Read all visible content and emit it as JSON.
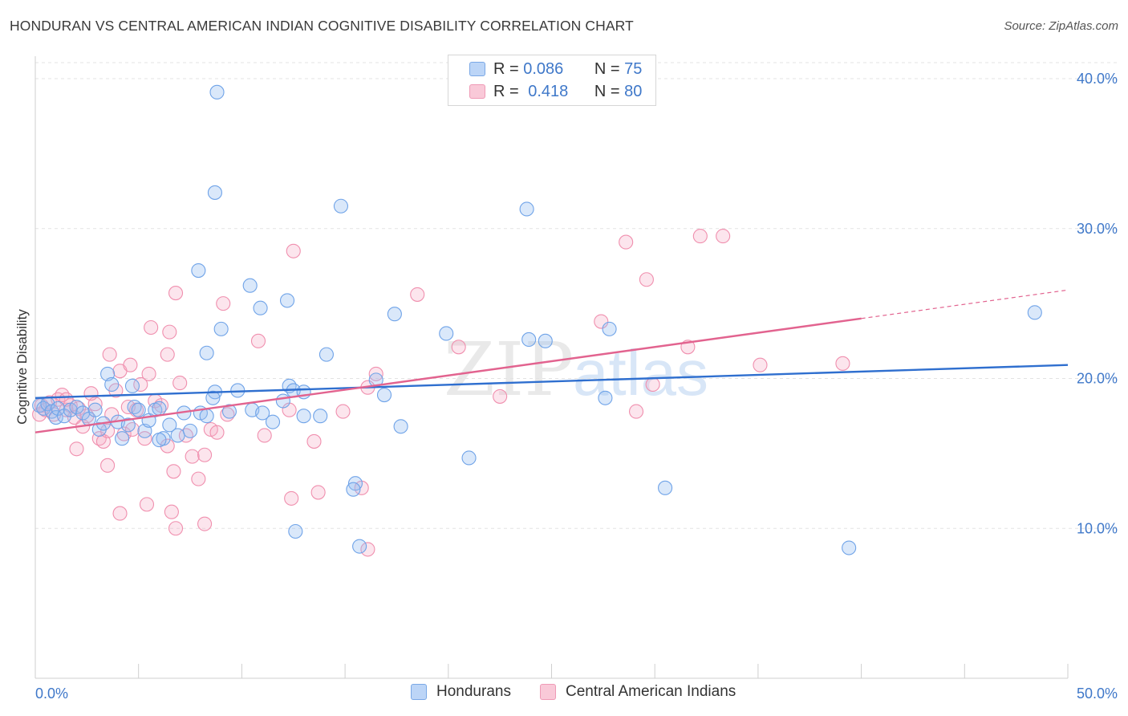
{
  "title": "HONDURAN VS CENTRAL AMERICAN INDIAN COGNITIVE DISABILITY CORRELATION CHART",
  "source": "Source: ZipAtlas.com",
  "legend": {
    "rows": [
      {
        "r_label": "R =",
        "r_value": "0.086",
        "n_label": "N =",
        "n_value": "75"
      },
      {
        "r_label": "R =",
        "r_value": "0.418",
        "n_label": "N =",
        "n_value": "80"
      }
    ]
  },
  "bottom_legend": [
    "Hondurans",
    "Central American Indians"
  ],
  "watermark": {
    "zip": "ZIP",
    "atlas": "atlas"
  },
  "chart_data": {
    "type": "scatter",
    "ylabel": "Cognitive Disability",
    "xlim": [
      0,
      50
    ],
    "ylim": [
      0,
      41.5
    ],
    "x_tick_labels": [
      "0.0%",
      "50.0%"
    ],
    "y_ticks": [
      10,
      20,
      30,
      40
    ],
    "y_tick_labels": [
      "10.0%",
      "20.0%",
      "30.0%",
      "40.0%"
    ],
    "grid": true,
    "colors": {
      "Hondurans": "#6fa3e8",
      "Central American Indians": "#f08fae",
      "trend_blue": "#2f6fcf",
      "trend_pink": "#e2638f"
    },
    "series": [
      {
        "name": "Hondurans",
        "points": [
          [
            0.2,
            18.2
          ],
          [
            0.4,
            18.0
          ],
          [
            0.6,
            18.3
          ],
          [
            0.8,
            17.8
          ],
          [
            1.0,
            17.4
          ],
          [
            1.1,
            18.0
          ],
          [
            1.4,
            17.5
          ],
          [
            1.7,
            17.9
          ],
          [
            2.0,
            18.1
          ],
          [
            2.3,
            17.7
          ],
          [
            2.6,
            17.3
          ],
          [
            2.9,
            17.9
          ],
          [
            3.1,
            16.6
          ],
          [
            3.3,
            17.0
          ],
          [
            3.5,
            20.3
          ],
          [
            3.7,
            19.6
          ],
          [
            4.0,
            17.1
          ],
          [
            4.2,
            16.0
          ],
          [
            4.5,
            16.9
          ],
          [
            4.8,
            18.1
          ],
          [
            5.0,
            17.9
          ],
          [
            5.3,
            16.5
          ],
          [
            5.5,
            17.2
          ],
          [
            5.8,
            17.9
          ],
          [
            6.0,
            18.0
          ],
          [
            6.2,
            16.0
          ],
          [
            6.5,
            16.9
          ],
          [
            6.9,
            16.2
          ],
          [
            7.2,
            17.7
          ],
          [
            7.5,
            16.5
          ],
          [
            8.0,
            17.7
          ],
          [
            8.3,
            17.5
          ],
          [
            8.7,
            19.1
          ],
          [
            9.4,
            17.8
          ],
          [
            9.8,
            19.2
          ],
          [
            10.5,
            17.9
          ],
          [
            11.0,
            17.7
          ],
          [
            11.5,
            17.1
          ],
          [
            12.0,
            18.5
          ],
          [
            12.3,
            19.5
          ],
          [
            12.5,
            19.2
          ],
          [
            13.0,
            17.5
          ],
          [
            8.7,
            32.4
          ],
          [
            14.8,
            31.5
          ],
          [
            9.0,
            23.3
          ],
          [
            12.2,
            25.2
          ],
          [
            10.4,
            26.2
          ],
          [
            10.9,
            24.7
          ],
          [
            14.1,
            21.6
          ],
          [
            17.4,
            24.3
          ],
          [
            19.9,
            23.0
          ],
          [
            23.9,
            22.6
          ],
          [
            24.7,
            22.5
          ],
          [
            8.6,
            18.7
          ],
          [
            8.3,
            21.7
          ],
          [
            7.9,
            27.2
          ],
          [
            4.7,
            19.5
          ],
          [
            23.8,
            31.3
          ],
          [
            8.8,
            39.1
          ],
          [
            27.8,
            23.3
          ],
          [
            27.6,
            18.7
          ],
          [
            30.5,
            12.7
          ],
          [
            21.0,
            14.7
          ],
          [
            15.5,
            13.0
          ],
          [
            15.4,
            12.6
          ],
          [
            15.7,
            8.8
          ],
          [
            17.7,
            16.8
          ],
          [
            16.9,
            18.9
          ],
          [
            16.5,
            19.9
          ],
          [
            12.6,
            9.8
          ],
          [
            13.8,
            17.5
          ],
          [
            13.0,
            19.1
          ],
          [
            39.4,
            8.7
          ],
          [
            48.4,
            24.4
          ],
          [
            6.0,
            15.9
          ]
        ]
      },
      {
        "name": "Central American Indians",
        "points": [
          [
            0.2,
            17.6
          ],
          [
            0.3,
            18.2
          ],
          [
            0.5,
            17.9
          ],
          [
            0.7,
            18.4
          ],
          [
            0.9,
            17.6
          ],
          [
            1.1,
            18.6
          ],
          [
            1.3,
            18.9
          ],
          [
            1.5,
            17.9
          ],
          [
            1.7,
            18.2
          ],
          [
            1.9,
            17.4
          ],
          [
            2.1,
            18.0
          ],
          [
            2.3,
            16.8
          ],
          [
            2.5,
            17.5
          ],
          [
            2.7,
            19.0
          ],
          [
            2.9,
            18.3
          ],
          [
            3.1,
            16.0
          ],
          [
            3.3,
            15.8
          ],
          [
            3.5,
            16.5
          ],
          [
            3.7,
            17.6
          ],
          [
            3.9,
            19.2
          ],
          [
            4.1,
            20.5
          ],
          [
            4.3,
            16.3
          ],
          [
            4.5,
            18.1
          ],
          [
            4.7,
            16.6
          ],
          [
            4.9,
            17.9
          ],
          [
            5.1,
            19.6
          ],
          [
            5.3,
            16.0
          ],
          [
            5.5,
            20.3
          ],
          [
            5.8,
            18.5
          ],
          [
            6.1,
            18.2
          ],
          [
            6.4,
            15.5
          ],
          [
            6.7,
            13.8
          ],
          [
            7.0,
            19.7
          ],
          [
            7.3,
            16.2
          ],
          [
            7.6,
            14.8
          ],
          [
            7.9,
            13.3
          ],
          [
            8.2,
            10.3
          ],
          [
            8.5,
            16.6
          ],
          [
            8.8,
            16.4
          ],
          [
            10.8,
            22.5
          ],
          [
            11.1,
            16.2
          ],
          [
            12.3,
            17.9
          ],
          [
            12.5,
            28.5
          ],
          [
            13.5,
            15.8
          ],
          [
            14.9,
            17.8
          ],
          [
            16.1,
            19.4
          ],
          [
            16.5,
            20.3
          ],
          [
            18.5,
            25.6
          ],
          [
            20.5,
            22.1
          ],
          [
            6.5,
            23.1
          ],
          [
            6.8,
            25.7
          ],
          [
            6.4,
            21.6
          ],
          [
            3.6,
            21.6
          ],
          [
            4.6,
            20.9
          ],
          [
            2.0,
            15.3
          ],
          [
            3.5,
            14.2
          ],
          [
            4.1,
            11.0
          ],
          [
            5.4,
            11.6
          ],
          [
            6.6,
            11.1
          ],
          [
            6.8,
            10.0
          ],
          [
            9.1,
            25.0
          ],
          [
            5.6,
            23.4
          ],
          [
            13.7,
            12.4
          ],
          [
            12.4,
            12.0
          ],
          [
            15.8,
            12.7
          ],
          [
            16.1,
            8.6
          ],
          [
            22.5,
            18.8
          ],
          [
            27.4,
            23.8
          ],
          [
            28.6,
            29.1
          ],
          [
            29.6,
            26.6
          ],
          [
            29.9,
            19.6
          ],
          [
            31.6,
            22.1
          ],
          [
            32.2,
            29.5
          ],
          [
            33.3,
            29.5
          ],
          [
            35.1,
            20.9
          ],
          [
            39.1,
            21.0
          ],
          [
            29.1,
            17.8
          ],
          [
            9.3,
            17.6
          ],
          [
            8.2,
            14.9
          ],
          [
            1.5,
            18.6
          ]
        ]
      }
    ],
    "trendlines": [
      {
        "series": "Hondurans",
        "x": [
          0,
          50
        ],
        "y": [
          18.7,
          20.9
        ]
      },
      {
        "series": "Central American Indians",
        "x": [
          0,
          40
        ],
        "y": [
          16.4,
          24.0
        ],
        "dashed_extension": {
          "x": [
            40,
            50
          ],
          "y": [
            24.0,
            25.9
          ]
        }
      }
    ]
  }
}
